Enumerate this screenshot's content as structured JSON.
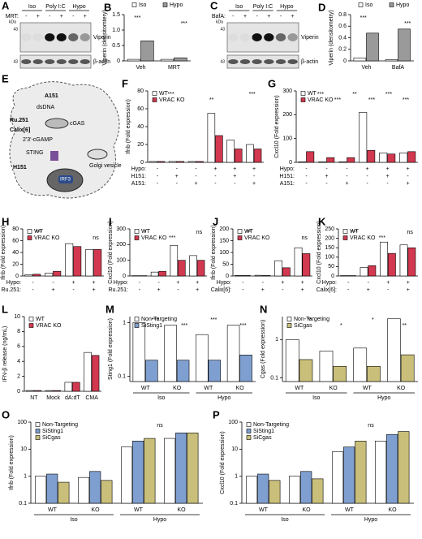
{
  "blots": [
    {
      "panel": "A",
      "groups": [
        "Iso",
        "Poly I:C",
        "Hypo"
      ],
      "treatment": "MRT:",
      "signs": [
        "-",
        "+",
        "-",
        "+",
        "-",
        "+"
      ],
      "kda": "kDa",
      "markers": [
        "43",
        "43"
      ],
      "rows": [
        "Viperin",
        "β-actin"
      ]
    },
    {
      "panel": "C",
      "groups": [
        "Iso",
        "Poly I:C",
        "Hypo"
      ],
      "treatment": "BafA:",
      "signs": [
        "-",
        "+",
        "-",
        "+",
        "-",
        "+"
      ],
      "kda": "kDa",
      "markers": [
        "43",
        "43"
      ],
      "rows": [
        "Viperin",
        "β-actin"
      ]
    }
  ],
  "diagram": {
    "panel": "E",
    "labels": [
      "A151",
      "dsDNA",
      "Ru.251",
      "Calix[6]",
      "cGAS",
      "2'3'-cGAMP",
      "STING",
      "H151",
      "Golgi vesicle",
      "IRF3"
    ]
  },
  "chart_data": [
    {
      "type": "bar",
      "panel": "B",
      "ylabel": "Viperin (densitomtery)",
      "categories": [
        "Veh",
        "MRT"
      ],
      "series": [
        {
          "name": "Iso",
          "color": "#ffffff",
          "values": [
            0.05,
            0.05
          ]
        },
        {
          "name": "Hypo",
          "color": "#9a9a9a",
          "values": [
            0.65,
            0.1
          ]
        }
      ],
      "ylim": [
        0,
        1.5
      ],
      "yticks": [
        0,
        0.5,
        {
          "value": 1,
          "label": "1.0"
        },
        1.5
      ],
      "legend": "top",
      "annotations": [
        "***",
        "***"
      ]
    },
    {
      "type": "bar",
      "panel": "D",
      "ylabel": "Viperin (densitometry)",
      "categories": [
        "Veh",
        "BafA"
      ],
      "series": [
        {
          "name": "Iso",
          "color": "#ffffff",
          "values": [
            0.05,
            0.02
          ]
        },
        {
          "name": "Hypo",
          "color": "#9a9a9a",
          "values": [
            0.48,
            0.55
          ]
        }
      ],
      "ylim": [
        0,
        0.8
      ],
      "yticks": [
        0,
        0.2,
        0.4,
        0.6,
        0.8
      ],
      "legend": "top",
      "annotations": [
        "***",
        "***"
      ]
    },
    {
      "type": "bar",
      "panel": "F",
      "ylabel": "Ifnb (Fold expression)",
      "categories": [
        null,
        null,
        null,
        null,
        null,
        null
      ],
      "series": [
        {
          "name": "WT",
          "color": "#ffffff",
          "values": [
            1,
            1,
            1,
            55,
            25,
            20
          ]
        },
        {
          "name": "VRAC KO",
          "color": "#d2384f",
          "values": [
            1,
            1,
            1,
            30,
            15,
            15
          ]
        }
      ],
      "ylim": [
        0,
        80
      ],
      "yticks": [
        0,
        20,
        40,
        60,
        80
      ],
      "legend": "upper left",
      "annotations": [
        "***",
        "**",
        "***"
      ],
      "conditions": [
        {
          "label": "Hypo:",
          "signs": [
            "-",
            "-",
            "-",
            "+",
            "+",
            "+"
          ]
        },
        {
          "label": "H151:",
          "signs": [
            "-",
            "+",
            "-",
            "-",
            "+",
            "-"
          ]
        },
        {
          "label": "A151:",
          "signs": [
            "-",
            "-",
            "+",
            "-",
            "-",
            "+"
          ]
        }
      ]
    },
    {
      "type": "bar",
      "panel": "G",
      "ylabel": "Cxcl10 (Fold expression)",
      "categories": [
        null,
        null,
        null,
        null,
        null,
        null
      ],
      "series": [
        {
          "name": "WT",
          "color": "#ffffff",
          "values": [
            2,
            2,
            2,
            210,
            40,
            40
          ]
        },
        {
          "name": "VRAC KO",
          "color": "#d2384f",
          "values": [
            45,
            20,
            20,
            50,
            35,
            45
          ]
        }
      ],
      "ylim": [
        0,
        300
      ],
      "yticks": [
        0,
        100,
        200,
        300
      ],
      "legend": "upper left",
      "annotations": [
        "***",
        "***",
        "**",
        "***",
        "***",
        "***"
      ],
      "conditions": [
        {
          "label": "Hypo:",
          "signs": [
            "-",
            "-",
            "-",
            "+",
            "+",
            "+"
          ]
        },
        {
          "label": "H151:",
          "signs": [
            "-",
            "+",
            "-",
            "-",
            "+",
            "-"
          ]
        },
        {
          "label": "A151:",
          "signs": [
            "-",
            "-",
            "+",
            "-",
            "-",
            "+"
          ]
        }
      ]
    },
    {
      "type": "bar",
      "panel": "H",
      "ylabel": "Ifnb (Fold expression)",
      "categories": [
        null,
        null,
        null,
        null
      ],
      "series": [
        {
          "name": "WT",
          "color": "#ffffff",
          "values": [
            2,
            5,
            55,
            45
          ]
        },
        {
          "name": "VRAC KO",
          "color": "#d2384f",
          "values": [
            3,
            8,
            50,
            45
          ]
        }
      ],
      "ylim": [
        0,
        80
      ],
      "yticks": [
        0,
        20,
        40,
        60,
        80
      ],
      "legend": "upper left",
      "annotations": [
        "***",
        "ns"
      ],
      "conditions": [
        {
          "label": "Hypo:",
          "signs": [
            "-",
            "-",
            "+",
            "+"
          ]
        },
        {
          "label": "Ru.251:",
          "signs": [
            "-",
            "+",
            "-",
            "+"
          ]
        }
      ]
    },
    {
      "type": "bar",
      "panel": "I",
      "ylabel": "Cxcl10 (Fold expression)",
      "categories": [
        null,
        null,
        null,
        null
      ],
      "series": [
        {
          "name": "WT",
          "color": "#ffffff",
          "values": [
            2,
            25,
            195,
            130
          ]
        },
        {
          "name": "VRAC KO",
          "color": "#d2384f",
          "values": [
            2,
            30,
            100,
            100
          ]
        }
      ],
      "ylim": [
        0,
        300
      ],
      "yticks": [
        0,
        100,
        200,
        300
      ],
      "legend": "upper left",
      "annotations": [
        "*",
        "***",
        "ns"
      ],
      "conditions": [
        {
          "label": "Hypo:",
          "signs": [
            "-",
            "-",
            "+",
            "+"
          ]
        },
        {
          "label": "Ru.251:",
          "signs": [
            "-",
            "+",
            "-",
            "+"
          ]
        }
      ]
    },
    {
      "type": "bar",
      "panel": "J",
      "ylabel": "Ifnb (Fold expression)",
      "categories": [
        null,
        null,
        null,
        null
      ],
      "series": [
        {
          "name": "WT",
          "color": "#ffffff",
          "values": [
            2,
            3,
            65,
            120
          ]
        },
        {
          "name": "VRAC KO",
          "color": "#d2384f",
          "values": [
            2,
            2,
            35,
            95
          ]
        }
      ],
      "ylim": [
        0,
        200
      ],
      "yticks": [
        0,
        50,
        100,
        150,
        200
      ],
      "legend": "upper left",
      "annotations": [
        "**",
        "ns"
      ],
      "conditions": [
        {
          "label": "Hypo:",
          "signs": [
            "-",
            "-",
            "+",
            "+"
          ]
        },
        {
          "label": "Calix[6]:",
          "signs": [
            "-",
            "+",
            "-",
            "+"
          ]
        }
      ]
    },
    {
      "type": "bar",
      "panel": "K",
      "ylabel": "Cxcl10 (Fold expression)",
      "categories": [
        null,
        null,
        null,
        null
      ],
      "series": [
        {
          "name": "WT",
          "color": "#ffffff",
          "values": [
            2,
            45,
            180,
            165
          ]
        },
        {
          "name": "VRAC KO",
          "color": "#d2384f",
          "values": [
            2,
            55,
            120,
            150
          ]
        }
      ],
      "ylim": [
        0,
        250
      ],
      "yticks": [
        0,
        50,
        100,
        150,
        200,
        250
      ],
      "legend": "upper left",
      "annotations": [
        "***",
        "***",
        "ns"
      ],
      "conditions": [
        {
          "label": "Hypo:",
          "signs": [
            "-",
            "-",
            "+",
            "+"
          ]
        },
        {
          "label": "Calix[6]:",
          "signs": [
            "-",
            "+",
            "-",
            "+"
          ]
        }
      ]
    },
    {
      "type": "bar",
      "panel": "L",
      "ylabel": "IFN-β release (ng/mL)",
      "categories": [
        "NT",
        "Mock",
        "dA:dT",
        "CMA"
      ],
      "series": [
        {
          "name": "WT",
          "color": "#ffffff",
          "values": [
            0.1,
            0.1,
            1.2,
            5.2
          ]
        },
        {
          "name": "VRAC KO",
          "color": "#d2384f",
          "values": [
            0.1,
            0.1,
            1.2,
            4.8
          ]
        }
      ],
      "ylim": [
        0,
        10
      ],
      "yticks": [
        0,
        2,
        4,
        6,
        8,
        10
      ],
      "legend": "upper left",
      "annotations": []
    },
    {
      "type": "bar",
      "panel": "M",
      "ylabel": "Sting1 (Fold expression)",
      "log": true,
      "categories": [
        "WT",
        "KO",
        "WT",
        "KO"
      ],
      "groups": [
        "Iso",
        "Hypo"
      ],
      "series": [
        {
          "name": "Non-Targeting",
          "color": "#ffffff",
          "values": [
            1,
            0.9,
            0.6,
            0.9
          ]
        },
        {
          "name": "SiSting1",
          "color": "#7f9fd0",
          "values": [
            0.2,
            0.2,
            0.2,
            0.25
          ]
        }
      ],
      "ylim": [
        0.08,
        1.3
      ],
      "yticks": [
        0.1,
        1
      ],
      "legend": "upper left",
      "annotations": [
        "***",
        "***",
        "***",
        "***"
      ]
    },
    {
      "type": "bar",
      "panel": "N",
      "ylabel": "Cgas (Fold expression)",
      "log": true,
      "categories": [
        "WT",
        "KO",
        "WT",
        "KO"
      ],
      "groups": [
        "Iso",
        "Hypo"
      ],
      "series": [
        {
          "name": "Non-Targeting",
          "color": "#ffffff",
          "values": [
            1,
            0.5,
            0.6,
            3.5
          ]
        },
        {
          "name": "SiCgas",
          "color": "#c9bf7a",
          "values": [
            0.3,
            0.2,
            0.2,
            0.4
          ]
        }
      ],
      "ylim": [
        0.08,
        4
      ],
      "yticks": [
        0.1,
        1
      ],
      "legend": "upper left",
      "annotations": [
        "**",
        "*",
        "*",
        "**"
      ]
    },
    {
      "type": "bar",
      "panel": "O",
      "ylabel": "Ifnb (Fold expression)",
      "log": true,
      "categories": [
        "WT",
        "KO",
        "WT",
        "KO"
      ],
      "groups": [
        "Iso",
        "Hypo"
      ],
      "series": [
        {
          "name": "Non-Targeting",
          "color": "#ffffff",
          "values": [
            1,
            0.9,
            12,
            25
          ]
        },
        {
          "name": "SiSting1",
          "color": "#7f9fd0",
          "values": [
            1.2,
            1.5,
            20,
            40
          ]
        },
        {
          "name": "SiCgas",
          "color": "#c9bf7a",
          "values": [
            0.6,
            0.7,
            25,
            40
          ]
        }
      ],
      "ylim": [
        0.1,
        100
      ],
      "yticks": [
        0.1,
        1,
        10,
        100
      ],
      "legend": "upper left",
      "annotations": [
        "ns"
      ]
    },
    {
      "type": "bar",
      "panel": "P",
      "ylabel": "Cxcl10 (Fold expression)",
      "log": true,
      "categories": [
        "WT",
        "KO",
        "WT",
        "KO"
      ],
      "groups": [
        "Iso",
        "Hypo"
      ],
      "series": [
        {
          "name": "Non-Targeting",
          "color": "#ffffff",
          "values": [
            1,
            1,
            8,
            20
          ]
        },
        {
          "name": "SiSting1",
          "color": "#7f9fd0",
          "values": [
            1.2,
            1.5,
            12,
            35
          ]
        },
        {
          "name": "SiCgas",
          "color": "#c9bf7a",
          "values": [
            0.7,
            0.8,
            20,
            45
          ]
        }
      ],
      "ylim": [
        0.1,
        100
      ],
      "yticks": [
        0.1,
        1,
        10,
        100
      ],
      "legend": "upper left",
      "annotations": [
        "ns"
      ]
    }
  ]
}
